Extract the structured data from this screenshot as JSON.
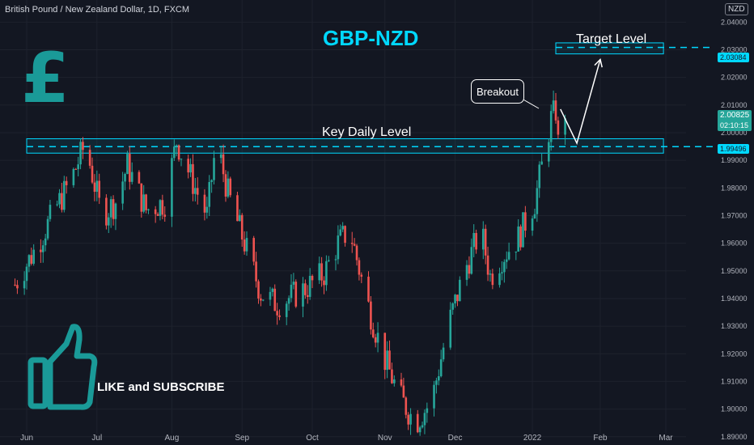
{
  "header": {
    "symbol_line": "British Pound / New Zealand Dollar, 1D, FXCM",
    "currency": "NZD"
  },
  "overlay": {
    "title": "GBP-NZD",
    "key_label": "Key Daily Level",
    "target_label": "Target Level",
    "breakout_label": "Breakout",
    "cta": "LIKE and SUBSCRIBE",
    "symbol_icon": "pound-sign-icon",
    "thumb_icon": "thumbs-up-icon"
  },
  "price_labels": {
    "current_price": "2.00825",
    "countdown": "02:10:15",
    "target_price": "2.03084",
    "key_price": "1.99496"
  },
  "colors": {
    "up": "#26a69a",
    "down": "#ef5350",
    "accent": "#00d8ff",
    "background": "#131722"
  },
  "chart_data": {
    "type": "candlestick",
    "title": "GBP-NZD",
    "ylim": [
      1.887,
      2.048
    ],
    "y_ticks": [
      "2.04000",
      "2.03000",
      "2.02000",
      "2.01000",
      "2.00000",
      "1.99000",
      "1.98000",
      "1.97000",
      "1.96000",
      "1.95000",
      "1.94000",
      "1.93000",
      "1.92000",
      "1.91000",
      "1.90000",
      "1.89000"
    ],
    "x_tick_labels": [
      "Jun",
      "Jul",
      "Aug",
      "Sep",
      "Oct",
      "Nov",
      "Dec",
      "2022",
      "Feb",
      "Mar"
    ],
    "x_tick_dates": [
      "2021-06-01",
      "2021-07-01",
      "2021-08-02",
      "2021-09-01",
      "2021-10-01",
      "2021-11-01",
      "2021-12-01",
      "2022-01-03",
      "2022-02-01",
      "2022-03-01"
    ],
    "x_domain": [
      "2021-06-01",
      "2022-03-01"
    ],
    "zones": [
      {
        "name": "Key Daily Level",
        "low": 1.9926,
        "high": 1.9978,
        "line": 1.99496,
        "start": "2021-06-01",
        "end": "2022-02-28"
      },
      {
        "name": "Target Level",
        "low": 2.0285,
        "high": 2.0325,
        "line": 2.03084,
        "start": "2022-01-13",
        "end": "2022-02-28"
      }
    ],
    "projection": [
      {
        "date": "2022-01-15",
        "price": 2.0085
      },
      {
        "date": "2022-01-22",
        "price": 1.9962
      },
      {
        "date": "2022-02-01",
        "price": 2.0265
      }
    ],
    "closes": [
      {
        "date": "2021-05-27",
        "close": 1.945
      },
      {
        "date": "2021-06-06",
        "close": 1.96
      },
      {
        "date": "2021-06-13",
        "close": 1.972
      },
      {
        "date": "2021-06-20",
        "close": 1.983
      },
      {
        "date": "2021-06-26",
        "close": 1.996
      },
      {
        "date": "2021-07-03",
        "close": 1.97
      },
      {
        "date": "2021-07-09",
        "close": 1.975
      },
      {
        "date": "2021-07-14",
        "close": 1.988
      },
      {
        "date": "2021-07-22",
        "close": 1.972
      },
      {
        "date": "2021-07-30",
        "close": 1.975
      },
      {
        "date": "2021-08-04",
        "close": 1.997
      },
      {
        "date": "2021-08-11",
        "close": 1.982
      },
      {
        "date": "2021-08-17",
        "close": 1.97
      },
      {
        "date": "2021-08-21",
        "close": 1.997
      },
      {
        "date": "2021-08-26",
        "close": 1.978
      },
      {
        "date": "2021-09-02",
        "close": 1.96
      },
      {
        "date": "2021-09-09",
        "close": 1.942
      },
      {
        "date": "2021-09-16",
        "close": 1.938
      },
      {
        "date": "2021-09-27",
        "close": 1.943
      },
      {
        "date": "2021-10-06",
        "close": 1.949
      },
      {
        "date": "2021-10-12",
        "close": 1.96
      },
      {
        "date": "2021-10-17",
        "close": 1.965
      },
      {
        "date": "2021-10-24",
        "close": 1.94
      },
      {
        "date": "2021-10-31",
        "close": 1.92
      },
      {
        "date": "2021-11-07",
        "close": 1.905
      },
      {
        "date": "2021-11-14",
        "close": 1.895
      },
      {
        "date": "2021-11-21",
        "close": 1.903
      },
      {
        "date": "2021-11-28",
        "close": 1.93
      },
      {
        "date": "2021-12-05",
        "close": 1.95
      },
      {
        "date": "2021-12-12",
        "close": 1.965
      },
      {
        "date": "2021-12-16",
        "close": 1.948
      },
      {
        "date": "2021-12-21",
        "close": 1.955
      },
      {
        "date": "2021-12-28",
        "close": 1.962
      },
      {
        "date": "2022-01-04",
        "close": 1.975
      },
      {
        "date": "2022-01-08",
        "close": 1.992
      },
      {
        "date": "2022-01-11",
        "close": 2.005
      },
      {
        "date": "2022-01-13",
        "close": 2.008
      },
      {
        "date": "2022-01-14",
        "close": 1.996
      },
      {
        "date": "2022-01-17",
        "close": 2.008
      }
    ]
  }
}
